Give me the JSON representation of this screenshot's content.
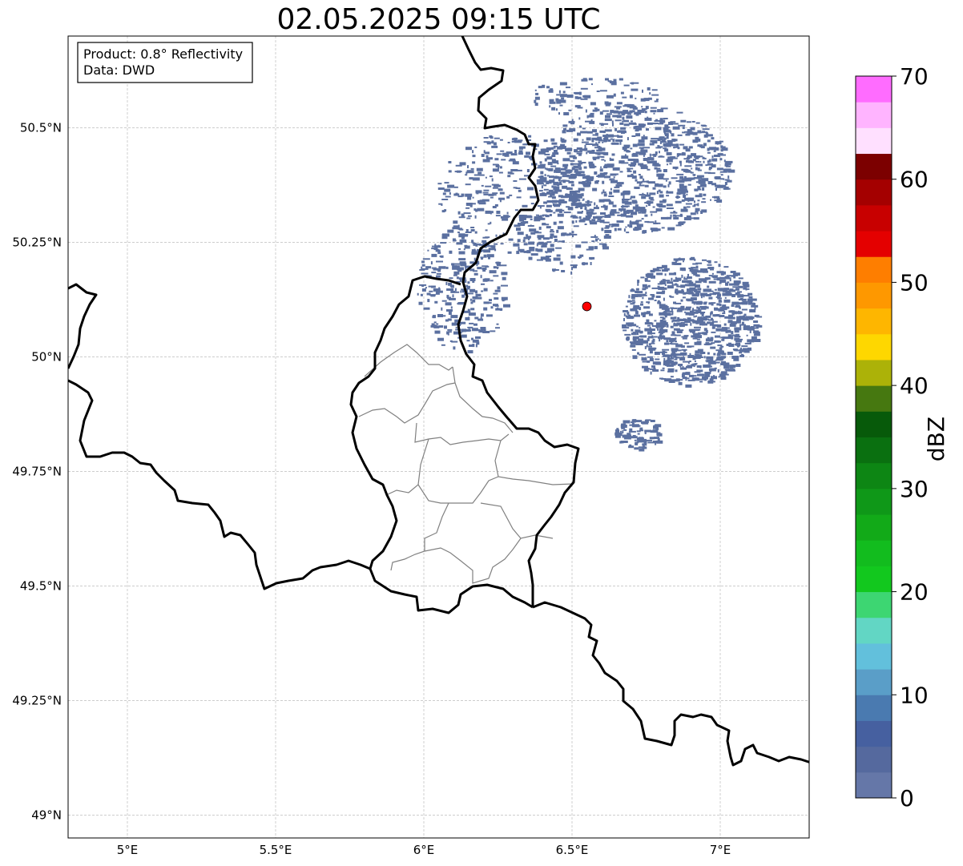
{
  "title": "02.05.2025 09:15 UTC",
  "info_box": {
    "product": "Product: 0.8° Reflectivity",
    "data": "Data: DWD"
  },
  "map": {
    "lon_range": [
      4.8,
      7.3
    ],
    "lat_range": [
      48.95,
      50.7
    ],
    "x_ticks": [
      {
        "value": 5.0,
        "label": "5°E"
      },
      {
        "value": 5.5,
        "label": "5.5°E"
      },
      {
        "value": 6.0,
        "label": "6°E"
      },
      {
        "value": 6.5,
        "label": "6.5°E"
      },
      {
        "value": 7.0,
        "label": "7°E"
      }
    ],
    "y_ticks": [
      {
        "value": 49.0,
        "label": "49°N"
      },
      {
        "value": 49.25,
        "label": "49.25°N"
      },
      {
        "value": 49.5,
        "label": "49.5°N"
      },
      {
        "value": 49.75,
        "label": "49.75°N"
      },
      {
        "value": 50.0,
        "label": "50°N"
      },
      {
        "value": 50.25,
        "label": "50.25°N"
      },
      {
        "value": 50.5,
        "label": "50.5°N"
      }
    ],
    "grid": true,
    "radar_site": {
      "lon": 6.55,
      "lat": 50.11,
      "color": "#ff0000"
    },
    "echo_color": "#5b70a0"
  },
  "colorbar": {
    "label": "dBZ",
    "min": 0,
    "max": 70,
    "step": 2.5,
    "tick_labels": [
      "0",
      "10",
      "20",
      "30",
      "40",
      "50",
      "60",
      "70"
    ],
    "colors": [
      "#6577a8",
      "#55699e",
      "#4660a0",
      "#4a7ab0",
      "#5a9ec8",
      "#62c0dc",
      "#62d6c4",
      "#3dd672",
      "#12c81e",
      "#12bc1e",
      "#12aa18",
      "#0f9818",
      "#0d8614",
      "#0a7010",
      "#075a0a",
      "#467810",
      "#acb208",
      "#fed700",
      "#feb600",
      "#fe9800",
      "#fe7e00",
      "#e40000",
      "#c80000",
      "#a40000",
      "#7c0000",
      "#ffe0ff",
      "#ffb4ff",
      "#ff6cff",
      "#ee36ee"
    ]
  }
}
